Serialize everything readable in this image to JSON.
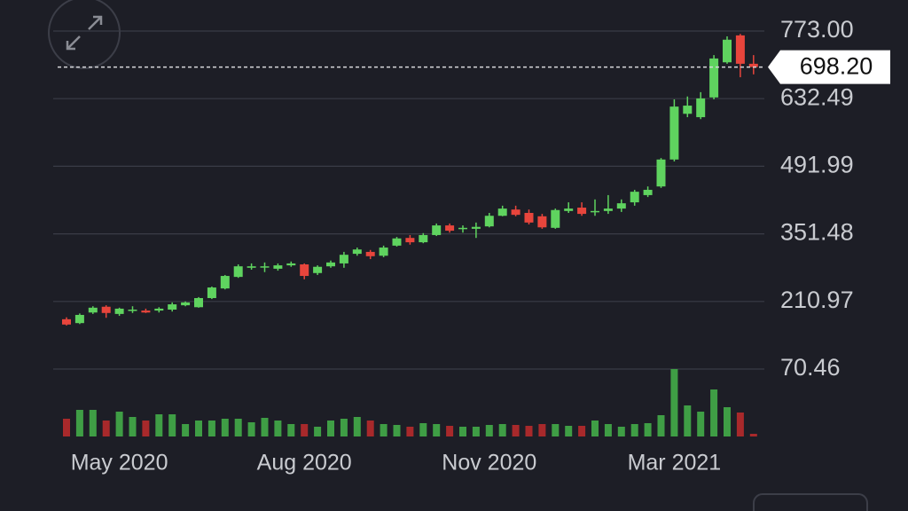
{
  "chart_data": {
    "type": "candlestick",
    "categories": [
      null,
      null,
      null,
      null,
      "May 2020",
      null,
      null,
      null,
      null,
      null,
      null,
      null,
      null,
      null,
      null,
      null,
      null,
      null,
      "Aug 2020",
      null,
      null,
      null,
      null,
      null,
      null,
      null,
      null,
      null,
      null,
      null,
      null,
      null,
      "Nov 2020",
      null,
      null,
      null,
      null,
      null,
      null,
      null,
      null,
      null,
      null,
      null,
      null,
      null,
      "Mar 2021",
      null,
      null,
      null,
      null,
      null,
      null
    ],
    "open": [
      174,
      166,
      188,
      200,
      185,
      192,
      192,
      192,
      194,
      203,
      199,
      218,
      238,
      262,
      281,
      283,
      279,
      286,
      288,
      270,
      284,
      290,
      310,
      314,
      306,
      327,
      343,
      334,
      349,
      369,
      362,
      362,
      367,
      389,
      402,
      395,
      388,
      364,
      399,
      406,
      397,
      399,
      404,
      417,
      432,
      450,
      506,
      601,
      594,
      635,
      708,
      764,
      705
    ],
    "high": [
      178,
      186,
      201,
      203,
      198,
      201,
      196,
      199,
      209,
      211,
      220,
      242,
      266,
      288,
      290,
      292,
      290,
      294,
      290,
      286,
      296,
      314,
      323,
      318,
      327,
      345,
      349,
      353,
      373,
      373,
      369,
      375,
      395,
      410,
      410,
      402,
      393,
      404,
      417,
      417,
      423,
      432,
      423,
      443,
      450,
      509,
      631,
      637,
      646,
      723,
      762,
      767,
      723
    ],
    "low": [
      161,
      164,
      185,
      177,
      181,
      187,
      187,
      188,
      190,
      201,
      198,
      216,
      236,
      260,
      277,
      272,
      275,
      283,
      257,
      266,
      281,
      281,
      306,
      299,
      303,
      325,
      329,
      332,
      347,
      354,
      354,
      343,
      365,
      388,
      388,
      371,
      362,
      362,
      395,
      389,
      389,
      393,
      397,
      410,
      428,
      447,
      502,
      594,
      590,
      631,
      705,
      677,
      683
    ],
    "close": [
      163,
      183,
      198,
      187,
      196,
      194,
      188,
      196,
      205,
      209,
      218,
      240,
      264,
      284,
      284,
      284,
      286,
      290,
      264,
      283,
      292,
      308,
      319,
      305,
      323,
      342,
      334,
      349,
      369,
      358,
      364,
      366,
      389,
      404,
      391,
      375,
      365,
      401,
      404,
      393,
      399,
      404,
      415,
      439,
      443,
      506,
      616,
      618,
      633,
      716,
      755,
      705,
      698.2
    ],
    "volume": [
      20,
      30,
      30,
      18,
      28,
      22,
      18,
      25,
      25,
      14,
      18,
      18,
      20,
      20,
      16,
      21,
      18,
      14,
      14,
      11,
      18,
      20,
      22,
      18,
      14,
      13,
      11,
      15,
      14,
      12,
      11,
      11,
      13,
      14,
      13,
      12,
      14,
      14,
      12,
      12,
      18,
      14,
      11,
      14,
      15,
      24,
      76,
      35,
      28,
      53,
      33,
      27,
      3
    ],
    "volume_lim": [
      0,
      80
    ],
    "ylim": [
      70.46,
      773
    ],
    "yticks": [
      {
        "value": 773,
        "label": "773.00"
      },
      632.49,
      491.99,
      351.48,
      210.97,
      70.46
    ],
    "last_price": {
      "value": 698.2,
      "label": "698.20"
    },
    "grid": true,
    "up_color": "#5fd35f",
    "down_color": "#e8453c",
    "volume_up_color": "#3f9e45",
    "volume_down_color": "#a8292b"
  }
}
